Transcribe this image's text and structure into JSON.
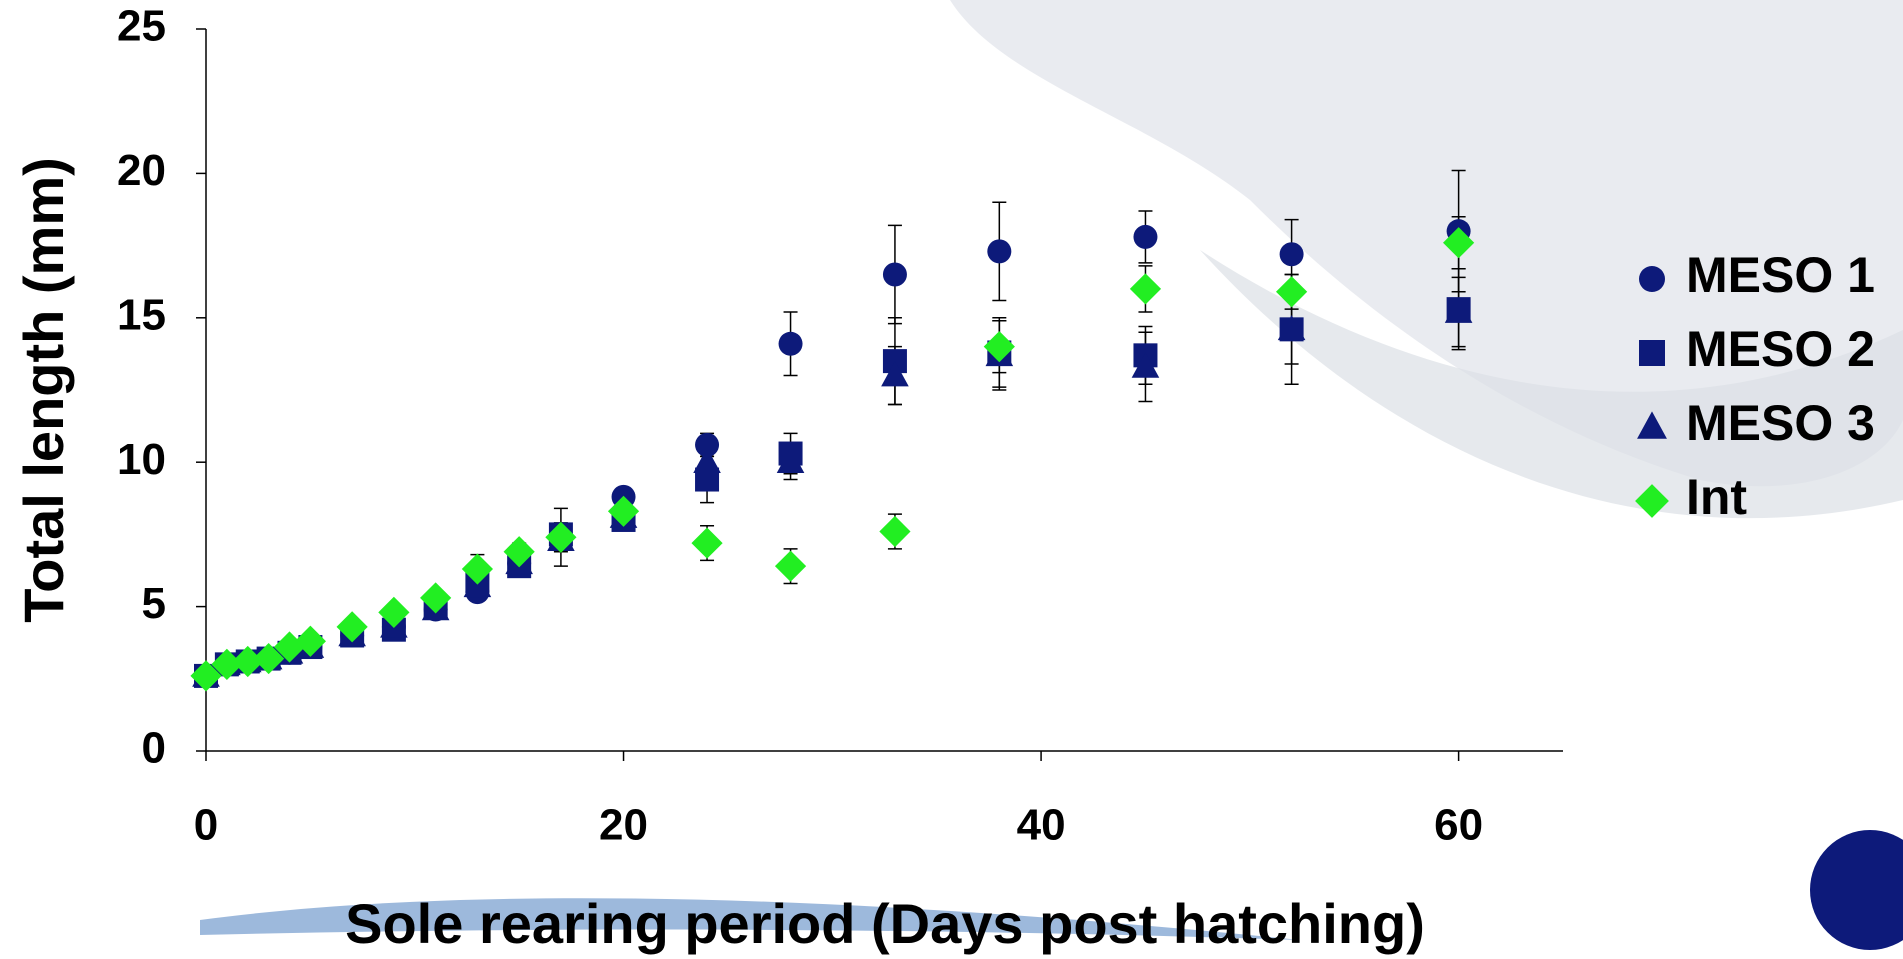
{
  "chart_data": {
    "type": "scatter",
    "x_label": "Sole rearing period (Days post hatching)",
    "y_label": "Total length (mm)",
    "x": [
      0,
      1,
      2,
      3,
      4,
      5,
      7,
      9,
      11,
      13,
      15,
      17,
      20,
      24,
      28,
      33,
      38,
      45,
      52,
      60
    ],
    "xlim": [
      0,
      65
    ],
    "ylim": [
      0,
      25
    ],
    "xticks": [
      0,
      20,
      40,
      60
    ],
    "yticks": [
      0,
      5,
      10,
      15,
      20,
      25
    ],
    "legend": "right",
    "series": [
      {
        "name": "MESO 1",
        "color": "#0d1a7a",
        "marker": "circle",
        "values": [
          2.6,
          3.0,
          3.1,
          3.2,
          3.4,
          3.6,
          4.0,
          4.3,
          4.9,
          5.5,
          6.5,
          7.4,
          8.8,
          10.6,
          14.1,
          16.5,
          17.3,
          17.8,
          17.2,
          18.0
        ],
        "errors": [
          0.1,
          0.1,
          0.1,
          0.1,
          0.1,
          0.1,
          0.2,
          0.2,
          0.2,
          0.3,
          0.3,
          0.4,
          0.3,
          0.4,
          1.1,
          1.7,
          1.7,
          0.9,
          1.2,
          2.1
        ]
      },
      {
        "name": "MESO 2",
        "color": "#0d1a7a",
        "marker": "square",
        "values": [
          2.6,
          3.0,
          3.1,
          3.2,
          3.4,
          3.6,
          4.0,
          4.2,
          5.0,
          5.9,
          6.4,
          7.5,
          8.0,
          9.4,
          10.3,
          13.5,
          13.8,
          13.7,
          14.6,
          15.3
        ],
        "errors": [
          0.1,
          0.1,
          0.1,
          0.1,
          0.1,
          0.1,
          0.2,
          0.2,
          0.2,
          0.3,
          0.3,
          0.4,
          0.3,
          0.8,
          0.7,
          1.5,
          1.2,
          1.0,
          1.9,
          1.4
        ]
      },
      {
        "name": "MESO 3",
        "color": "#0d1a7a",
        "marker": "triangle",
        "values": [
          2.6,
          3.0,
          3.1,
          3.2,
          3.4,
          3.6,
          4.0,
          4.3,
          4.9,
          5.7,
          6.5,
          7.3,
          8.1,
          10.0,
          10.0,
          13.0,
          13.7,
          13.3,
          14.6,
          15.2
        ],
        "errors": [
          0.1,
          0.1,
          0.1,
          0.1,
          0.1,
          0.1,
          0.2,
          0.2,
          0.2,
          0.3,
          0.3,
          0.4,
          0.3,
          0.6,
          0.6,
          1.0,
          1.2,
          1.2,
          1.2,
          1.2
        ]
      },
      {
        "name": "Int",
        "color": "#22ee22",
        "marker": "diamond",
        "values": [
          2.6,
          3.0,
          3.1,
          3.2,
          3.6,
          3.8,
          4.3,
          4.8,
          5.3,
          6.3,
          6.9,
          7.4,
          8.3,
          7.2,
          6.4,
          7.6,
          14.0,
          16.0,
          15.9,
          17.6
        ],
        "errors": [
          0.1,
          0.1,
          0.1,
          0.1,
          0.1,
          0.1,
          0.2,
          0.2,
          0.2,
          0.5,
          0.3,
          1.0,
          0.3,
          0.6,
          0.6,
          0.6,
          0.9,
          0.8,
          0.6,
          0.9
        ]
      }
    ]
  }
}
